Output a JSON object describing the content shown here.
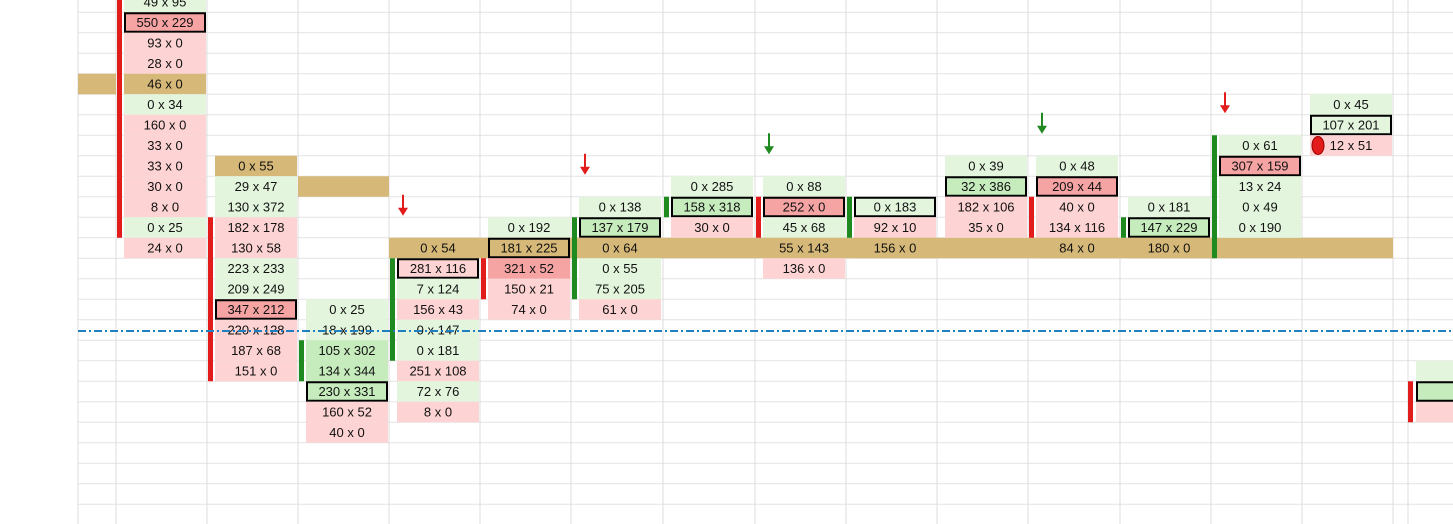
{
  "columns": [
    {
      "cells": [
        "49 x 95",
        "550 x 229",
        "93 x 0",
        "28 x 0",
        "46 x 0",
        "0 x 34",
        "160 x 0",
        "33 x 0",
        "33 x 0",
        "30 x 0",
        "8 x 0",
        "0 x 25",
        "24 x 0"
      ]
    },
    {
      "cells": [
        "0 x 55",
        "29 x 47",
        "130 x 372",
        "182 x 178",
        "130 x 58",
        "223 x 233",
        "209 x 249",
        "347 x 212",
        "220 x 128",
        "187 x 68",
        "151 x 0"
      ]
    },
    {
      "cells": [
        "0 x 25",
        "18 x 199",
        "105 x 302",
        "134 x 344",
        "230 x 331",
        "160 x 52",
        "40 x 0"
      ]
    },
    {
      "cells": [
        "0 x 54",
        "281 x 116",
        "7 x 124",
        "156 x 43",
        "0 x 147",
        "0 x 181",
        "251 x 108",
        "72 x 76",
        "8 x 0"
      ]
    },
    {
      "cells": [
        "0 x 192",
        "181 x 225",
        "321 x 52",
        "150 x 21",
        "74 x 0"
      ]
    },
    {
      "cells": [
        "0 x 138",
        "137 x 179",
        "0 x 64",
        "0 x 55",
        "75 x 205",
        "61 x 0"
      ]
    },
    {
      "cells": [
        "0 x 285",
        "158 x 318",
        "30 x 0"
      ]
    },
    {
      "cells": [
        "0 x 88",
        "252 x 0",
        "45 x 68",
        "55 x 143",
        "136 x 0"
      ]
    },
    {
      "cells": [
        "0 x 183",
        "92 x 10",
        "156 x 0"
      ]
    },
    {
      "cells": [
        "0 x 39",
        "32 x 386",
        "182 x 106",
        "35 x 0"
      ]
    },
    {
      "cells": [
        "0 x 48",
        "209 x 44",
        "40 x 0",
        "134 x 116",
        "84 x 0"
      ]
    },
    {
      "cells": [
        "0 x 181",
        "147 x 229",
        "180 x 0"
      ]
    },
    {
      "cells": [
        "0 x 61",
        "307 x 159",
        "13 x 24",
        "0 x 49",
        "0 x 190"
      ]
    },
    {
      "cells": [
        "0 x 45",
        "107 x 201",
        "12 x 51"
      ]
    }
  ]
}
